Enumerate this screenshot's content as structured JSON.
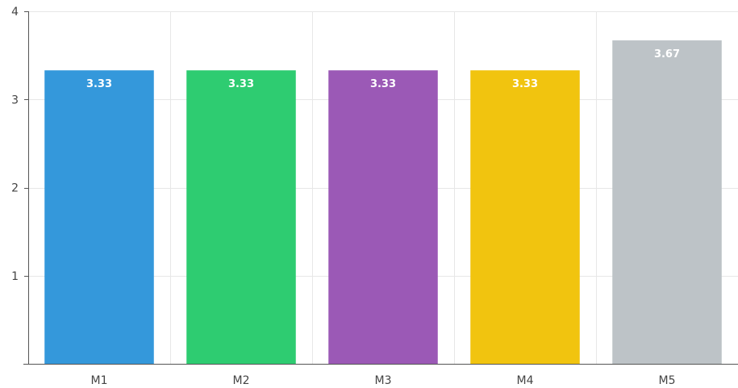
{
  "chart_data": {
    "type": "bar",
    "title": "",
    "xlabel": "",
    "ylabel": "",
    "categories": [
      "M1",
      "M2",
      "M3",
      "M4",
      "M5"
    ],
    "values": [
      3.33,
      3.33,
      3.33,
      3.33,
      3.67
    ],
    "value_labels": [
      "3.33",
      "3.33",
      "3.33",
      "3.33",
      "3.67"
    ],
    "colors": [
      "#3498db",
      "#2ecc71",
      "#9b59b6",
      "#f1c40f",
      "#bdc3c7"
    ],
    "ylim": [
      0,
      4
    ],
    "yticks": [
      1,
      2,
      3,
      4
    ],
    "ytick_labels": [
      "1",
      "2",
      "3",
      "4"
    ],
    "grid": true,
    "legend": "none"
  }
}
